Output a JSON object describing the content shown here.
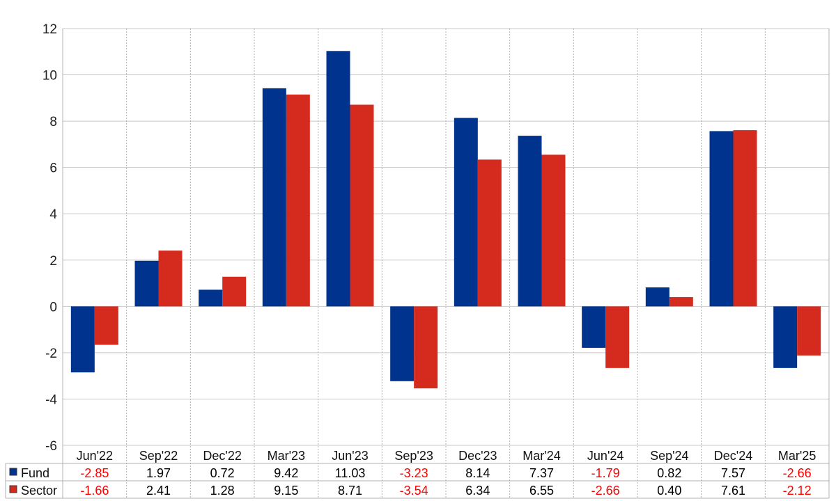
{
  "chart_data": {
    "type": "bar",
    "categories": [
      "Jun'22",
      "Sep'22",
      "Dec'22",
      "Mar'23",
      "Jun'23",
      "Sep'23",
      "Dec'23",
      "Mar'24",
      "Jun'24",
      "Sep'24",
      "Dec'24",
      "Mar'25"
    ],
    "series": [
      {
        "name": "Fund",
        "color": "#00338d",
        "values": [
          -2.85,
          1.97,
          0.72,
          9.42,
          11.03,
          -3.23,
          8.14,
          7.37,
          -1.79,
          0.82,
          7.57,
          -2.66
        ],
        "labels": [
          "-2.85",
          "1.97",
          "0.72",
          "9.42",
          "11.03",
          "-3.23",
          "8.14",
          "7.37",
          "-1.79",
          "0.82",
          "7.57",
          "-2.66"
        ]
      },
      {
        "name": "Sector",
        "color": "#d52b1e",
        "values": [
          -1.66,
          2.41,
          1.28,
          9.15,
          8.71,
          -3.54,
          6.34,
          6.55,
          -2.66,
          0.4,
          7.61,
          -2.12
        ],
        "labels": [
          "-1.66",
          "2.41",
          "1.28",
          "9.15",
          "8.71",
          "-3.54",
          "6.34",
          "6.55",
          "-2.66",
          "0.40",
          "7.61",
          "-2.12"
        ]
      }
    ],
    "yticks": [
      "-6",
      "-4",
      "-2",
      "0",
      "2",
      "4",
      "6",
      "8",
      "10",
      "12"
    ],
    "ylim": [
      -6,
      12
    ],
    "title": "",
    "xlabel": "",
    "ylabel": "",
    "grid": true,
    "legend": "data-table-left",
    "negative_value_color": "#ff0000",
    "positive_value_color": "#000000"
  }
}
